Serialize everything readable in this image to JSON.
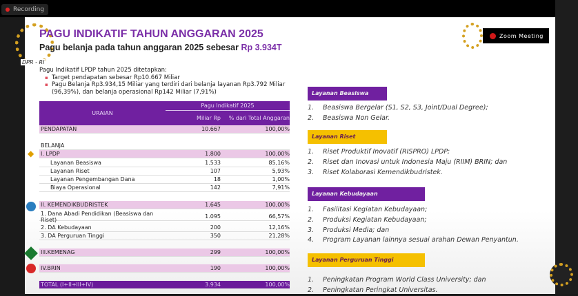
{
  "recording": {
    "label": "Recording"
  },
  "zoom_badge": {
    "label": "Zoom Meeting"
  },
  "logo": {
    "text": "DPR - RI"
  },
  "slide": {
    "title": "PAGU INDIKATIF TAHUN ANGGARAN 2025",
    "subtitle": "Pagu belanja pada tahun anggaran 2025 sebesar ",
    "subtitle_highlight": "Rp 3.934T",
    "intro": "Pagu Indikatif LPDP tahun 2025 ditetapkan:",
    "bullets": [
      "Target pendapatan sebesar Rp10.667 Miliar",
      "Pagu Belanja Rp3.934,15 Miliar yang terdiri dari belanja layanan Rp3.792 Miliar (96,39%), dan belanja operasional Rp142 Miliar (7,91%)"
    ]
  },
  "table": {
    "header": {
      "uraian": "URAIAN",
      "group": "Pagu Indikatif 2025",
      "col1": "Miliar Rp",
      "col2": "% dari Total Anggaran"
    },
    "rows": [
      {
        "label": "PENDAPATAN",
        "value": "10.667",
        "pct": "100,00%"
      },
      {
        "label": "BELANJA",
        "value": "",
        "pct": ""
      },
      {
        "label": "I. LPDP",
        "value": "1.800",
        "pct": "100,00%"
      },
      {
        "label": "Layanan Beasiswa",
        "value": "1.533",
        "pct": "85,16%"
      },
      {
        "label": "Layanan Riset",
        "value": "107",
        "pct": "5,93%"
      },
      {
        "label": "Layanan Pengembangan Dana",
        "value": "18",
        "pct": "1,00%"
      },
      {
        "label": "Biaya Operasional",
        "value": "142",
        "pct": "7,91%"
      },
      {
        "label": "II.  KEMENDIKBUDRISTEK",
        "value": "1.645",
        "pct": "100,00%"
      },
      {
        "label": "1. Dana Abadi Pendidikan (Beasiswa dan Riset)",
        "value": "1.095",
        "pct": "66,57%"
      },
      {
        "label": "2. DA Kebudayaan",
        "value": "200",
        "pct": "12,16%"
      },
      {
        "label": "3. DA Perguruan Tinggi",
        "value": "350",
        "pct": "21,28%"
      },
      {
        "label": "III.KEMENAG",
        "value": "299",
        "pct": "100,00%"
      },
      {
        "label": "IV.BRIN",
        "value": "190",
        "pct": "100,00%"
      },
      {
        "label": "TOTAL (I+II+III+IV)",
        "value": "3.934",
        "pct": "100,00%"
      }
    ]
  },
  "services": [
    {
      "title": "Layanan Beasiswa",
      "color": "#7020a0",
      "items": [
        "Beasiswa Bergelar (S1, S2, S3, Joint/Dual Degree);",
        "Beasiswa Non Gelar."
      ]
    },
    {
      "title": "Layanan Riset",
      "color": "#f5c000",
      "items": [
        "Riset Produktif Inovatif (RISPRO) LPDP;",
        "Riset dan Inovasi untuk Indonesia Maju (RIIM) BRIN; dan",
        "Riset Kolaborasi Kemendikbudristek."
      ]
    },
    {
      "title": "Layanan Kebudayaan",
      "color": "#7020a0",
      "items": [
        "Fasilitasi Kegiatan Kebudayaan;",
        "Produksi Kegiatan Kebudayaan;",
        "Produksi Media; dan",
        "Program Layanan lainnya sesuai arahan Dewan Penyantun."
      ]
    },
    {
      "title": "Layanan Perguruan Tinggi",
      "color": "#f5c000",
      "items": [
        "Peningkatan Program World Class University; dan",
        "Peningkatan Peringkat Universitas."
      ]
    }
  ]
}
